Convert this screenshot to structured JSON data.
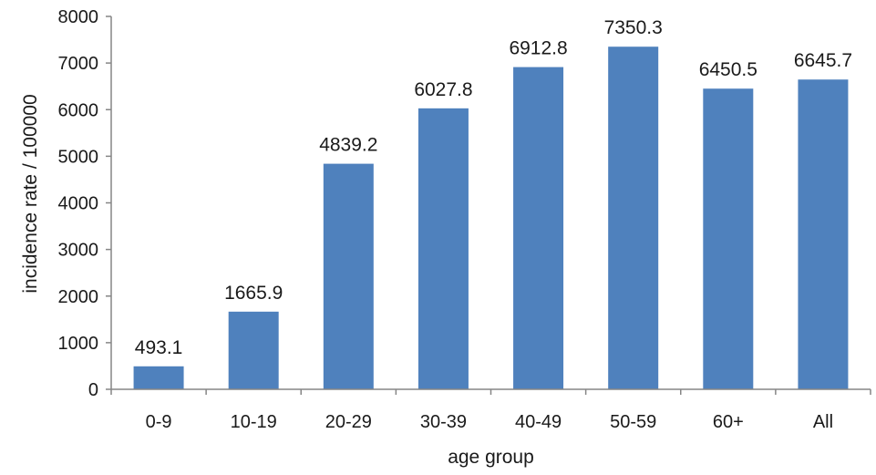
{
  "chart_data": {
    "type": "bar",
    "title": "",
    "xlabel": "age group",
    "ylabel": "incidence rate / 100000",
    "categories": [
      "0-9",
      "10-19",
      "20-29",
      "30-39",
      "40-49",
      "50-59",
      "60+",
      "All"
    ],
    "values": [
      493.1,
      1665.9,
      4839.2,
      6027.8,
      6912.8,
      7350.3,
      6450.5,
      6645.7
    ],
    "data_labels": [
      "493.1",
      "1665.9",
      "4839.2",
      "6027.8",
      "6912.8",
      "7350.3",
      "6450.5",
      "6645.7"
    ],
    "ylim": [
      0,
      8000
    ],
    "yticks": [
      0,
      1000,
      2000,
      3000,
      4000,
      5000,
      6000,
      7000,
      8000
    ],
    "grid": false,
    "legend": "none",
    "bar_color": "#4f81bd",
    "axis_color": "#868686"
  }
}
